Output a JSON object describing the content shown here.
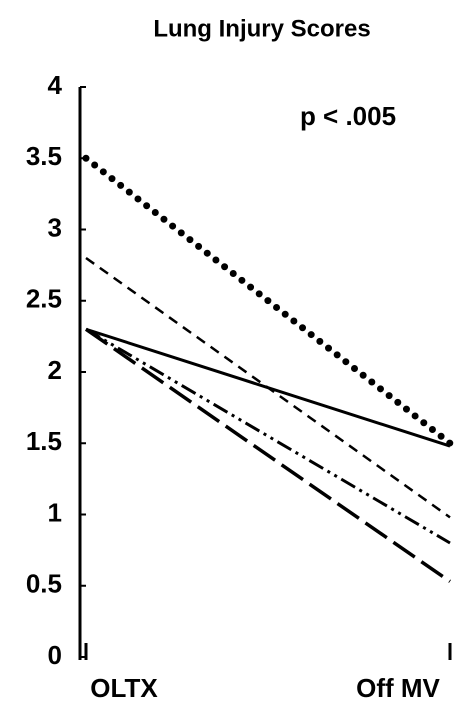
{
  "chart_data": {
    "type": "line",
    "title": "Lung Injury Scores",
    "annotation": "p < .005",
    "categories": [
      "OLTX",
      "Off MV"
    ],
    "series": [
      {
        "color": "#000000",
        "style": "dotted",
        "values": [
          3.5,
          1.5
        ]
      },
      {
        "color": "#000000",
        "style": "dashed",
        "values": [
          2.8,
          0.98
        ]
      },
      {
        "color": "#000000",
        "style": "solid",
        "values": [
          2.3,
          1.48
        ]
      },
      {
        "color": "#000000",
        "style": "dash-dot-dot",
        "values": [
          2.3,
          0.8
        ]
      },
      {
        "color": "#000000",
        "style": "long-dash",
        "values": [
          2.3,
          0.53
        ]
      }
    ],
    "ylim": [
      0,
      4
    ],
    "yticks": [
      0,
      0.5,
      1,
      1.5,
      2,
      2.5,
      3,
      3.5,
      4
    ],
    "grid": false
  }
}
